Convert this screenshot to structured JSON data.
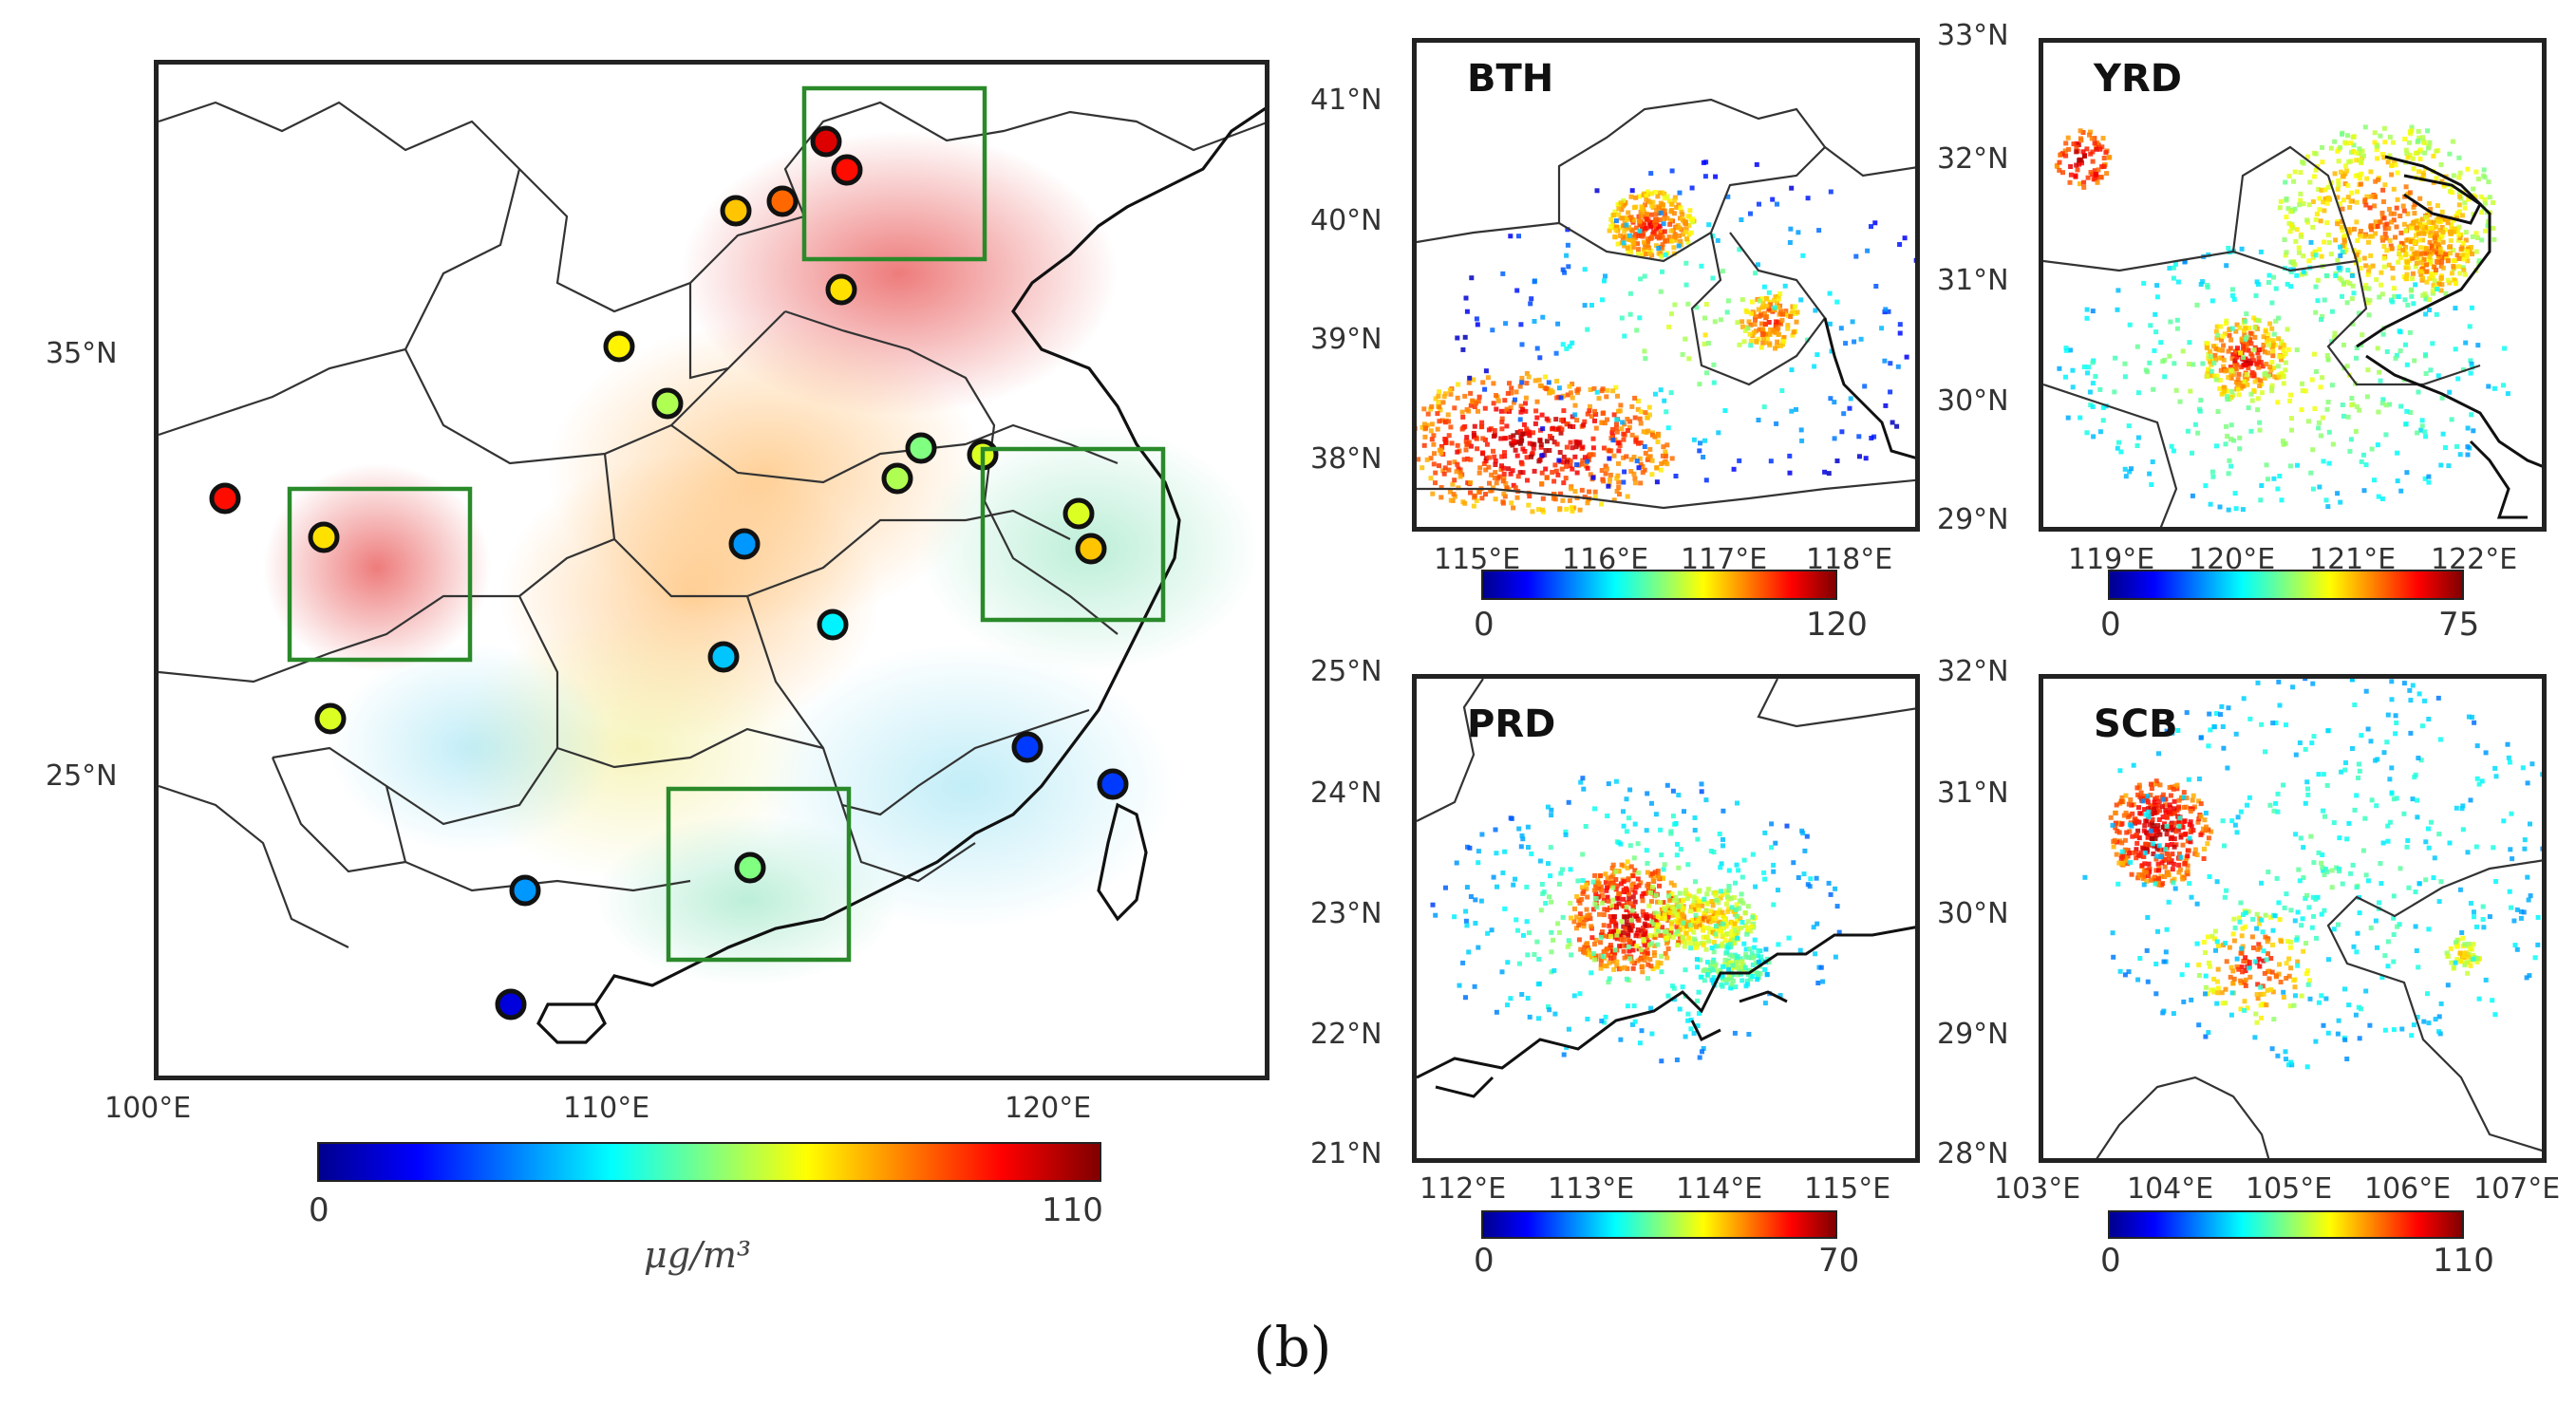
{
  "figure": {
    "caption": "(b)",
    "colormap_name": "jet",
    "main_map": {
      "lon_ticks": [
        "100°E",
        "110°E",
        "120°E"
      ],
      "lat_ticks": [
        "35°N",
        "25°N"
      ],
      "colorbar": {
        "min": "0",
        "max": "110",
        "units": "μg/m³"
      },
      "sites": [
        {
          "value": 100
        },
        {
          "value": 95
        },
        {
          "value": 85
        },
        {
          "value": 75
        },
        {
          "value": 72
        },
        {
          "value": 70
        },
        {
          "value": 60
        },
        {
          "value": 95
        },
        {
          "value": 72
        },
        {
          "value": 55
        },
        {
          "value": 65
        },
        {
          "value": 60
        },
        {
          "value": 65
        },
        {
          "value": 75
        },
        {
          "value": 30
        },
        {
          "value": 40
        },
        {
          "value": 35
        },
        {
          "value": 20
        },
        {
          "value": 65
        },
        {
          "value": 55
        },
        {
          "value": 30
        },
        {
          "value": 10
        },
        {
          "value": 20
        }
      ],
      "focus_boxes": [
        "BTH",
        "YRD",
        "SCB",
        "PRD"
      ]
    },
    "insets": {
      "bth": {
        "title": "BTH",
        "lon_ticks": [
          "115°E",
          "116°E",
          "117°E",
          "118°E"
        ],
        "lat_ticks": [
          "41°N",
          "40°N",
          "39°N",
          "38°N"
        ],
        "cbar_min": "0",
        "cbar_max": "120"
      },
      "yrd": {
        "title": "YRD",
        "lon_ticks": [
          "119°E",
          "120°E",
          "121°E",
          "122°E"
        ],
        "lat_ticks": [
          "33°N",
          "32°N",
          "31°N",
          "30°N",
          "29°N"
        ],
        "cbar_min": "0",
        "cbar_max": "75"
      },
      "prd": {
        "title": "PRD",
        "lon_ticks": [
          "112°E",
          "113°E",
          "114°E",
          "115°E"
        ],
        "lat_ticks": [
          "25°N",
          "24°N",
          "23°N",
          "22°N",
          "21°N"
        ],
        "cbar_min": "0",
        "cbar_max": "70"
      },
      "scb": {
        "title": "SCB",
        "lon_ticks": [
          "103°E",
          "104°E",
          "105°E",
          "106°E",
          "107°E"
        ],
        "lat_ticks": [
          "32°N",
          "31°N",
          "30°N",
          "29°N",
          "28°N"
        ],
        "cbar_min": "0",
        "cbar_max": "110"
      }
    }
  }
}
